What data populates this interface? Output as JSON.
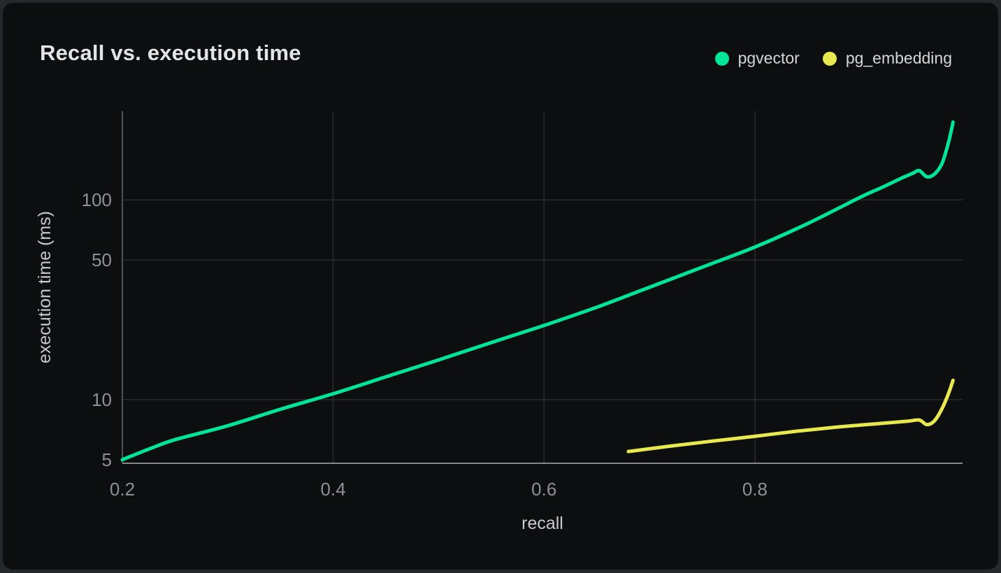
{
  "card": {
    "title": "Recall vs. execution time"
  },
  "legend": [
    {
      "label": "pgvector",
      "color": "#00e599"
    },
    {
      "label": "pg_embedding",
      "color": "#e9e94f"
    }
  ],
  "colors": {
    "page_background": "#27282c",
    "card_background": "#0d0e10",
    "grid_line": "#2a2c31",
    "left_axis_line": "#4f535a",
    "bottom_axis_line": "#84878f",
    "tick_text": "#8d9097",
    "axis_title_text": "#c7c9ce",
    "title_text": "#e3e4e8",
    "pgvector_green": "#00e599",
    "pg_embedding_yellow": "#e9e94f"
  },
  "chart_data": {
    "type": "line",
    "title": "Recall vs. execution time",
    "xlabel": "recall",
    "ylabel": "execution time (ms)",
    "x_scale": "linear",
    "y_scale": "log",
    "xlim": [
      0.2,
      0.997
    ],
    "ylim": [
      4.8,
      278
    ],
    "x_ticks": [
      0.2,
      0.4,
      0.6,
      0.8
    ],
    "x_tick_labels": [
      "0.2",
      "0.4",
      "0.6",
      "0.8"
    ],
    "y_ticks": [
      5,
      10,
      50,
      100
    ],
    "y_tick_labels": [
      "5",
      "10",
      "50",
      "100"
    ],
    "grid": true,
    "legend_position": "top-right",
    "series": [
      {
        "name": "pgvector",
        "color": "#00e599",
        "points": [
          [
            0.2,
            5.0
          ],
          [
            0.225,
            5.65
          ],
          [
            0.25,
            6.3
          ],
          [
            0.3,
            7.4
          ],
          [
            0.35,
            8.95
          ],
          [
            0.4,
            10.7
          ],
          [
            0.45,
            13.0
          ],
          [
            0.5,
            15.8
          ],
          [
            0.55,
            19.3
          ],
          [
            0.6,
            23.5
          ],
          [
            0.65,
            29.0
          ],
          [
            0.7,
            36.5
          ],
          [
            0.75,
            46.0
          ],
          [
            0.8,
            58.0
          ],
          [
            0.85,
            76.0
          ],
          [
            0.9,
            103
          ],
          [
            0.92,
            115
          ],
          [
            0.94,
            129
          ],
          [
            0.95,
            136
          ],
          [
            0.956,
            140
          ],
          [
            0.963,
            130.5
          ],
          [
            0.97,
            134
          ],
          [
            0.977,
            150
          ],
          [
            0.982,
            180
          ],
          [
            0.985,
            207
          ],
          [
            0.988,
            245
          ]
        ]
      },
      {
        "name": "pg_embedding",
        "color": "#e9e94f",
        "points": [
          [
            0.68,
            5.5
          ],
          [
            0.72,
            5.85
          ],
          [
            0.76,
            6.2
          ],
          [
            0.8,
            6.55
          ],
          [
            0.84,
            6.95
          ],
          [
            0.88,
            7.3
          ],
          [
            0.92,
            7.6
          ],
          [
            0.945,
            7.8
          ],
          [
            0.956,
            7.9
          ],
          [
            0.963,
            7.5
          ],
          [
            0.97,
            7.8
          ],
          [
            0.977,
            8.9
          ],
          [
            0.983,
            10.5
          ],
          [
            0.988,
            12.5
          ]
        ]
      }
    ]
  }
}
